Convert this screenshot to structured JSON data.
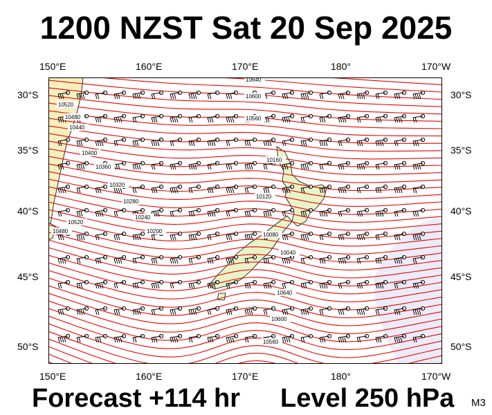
{
  "title": "1200 NZST Sat 20 Sep 2025",
  "forecast_label": "Forecast +114 hr",
  "level_label": "Level 250 hPa",
  "model_label": "M3",
  "longitude_ticks": [
    "150°E",
    "160°E",
    "170°E",
    "180°",
    "170°W"
  ],
  "latitude_ticks": [
    "30°S",
    "35°S",
    "40°S",
    "45°S",
    "50°S"
  ],
  "contour_labels": [
    "10640",
    "10600",
    "10560",
    "10520",
    "10480",
    "10440",
    "10400",
    "10360",
    "10320",
    "10280",
    "10240",
    "10200",
    "10160",
    "10120",
    "10080",
    "10040"
  ],
  "colors": {
    "contour": "#ee0000",
    "land": "#f5f0c0",
    "land_outline": "#000000",
    "background": "#ffffff",
    "low_wind_region": "#ececf8",
    "wind_barb": "#000000"
  }
}
